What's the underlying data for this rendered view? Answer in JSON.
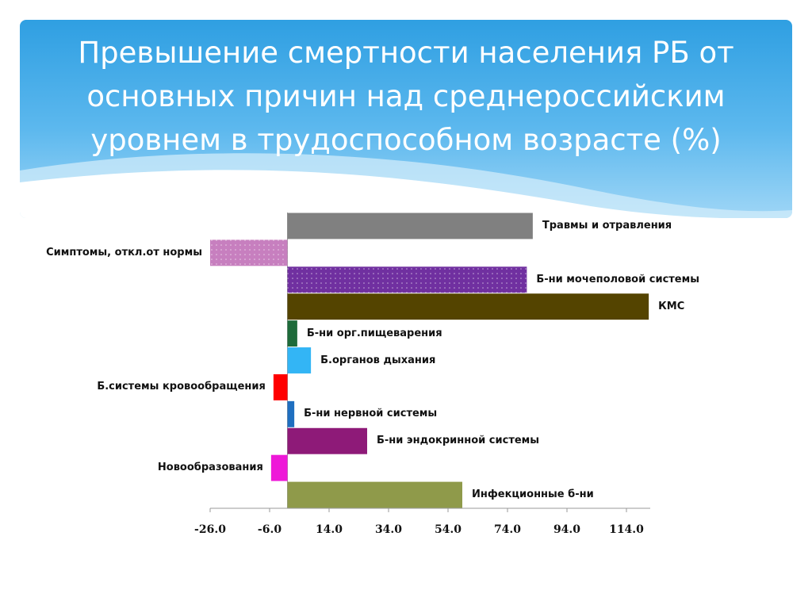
{
  "chart_data": {
    "type": "hbar",
    "title": "Превышение смертности населения РБ от основных причин над среднероссийским уровнем в трудоспособном возрасте (%)",
    "categories": [
      "Травмы и отравления",
      "Симптомы, откл.от нормы",
      "Б-ни мочеполовой системы",
      "КМС",
      "Б-ни орг.пищеварения",
      "Б.органов дыхания",
      "Б.системы кровообращения",
      "Б-ни нервной системы",
      "Б-ни эндокринной системы",
      "Новообразования",
      "Инфекционные б-ни"
    ],
    "values": [
      82.5,
      -26,
      80.5,
      121.5,
      3.3,
      7.9,
      -4.7,
      2.3,
      26.8,
      -5.5,
      58.8
    ],
    "colors": [
      "#808080",
      "#c77fbf",
      "#7030a0",
      "#544400",
      "#1e6b3a",
      "#33b5f5",
      "#ff0000",
      "#1f6fc0",
      "#8e1a78",
      "#ee18d8",
      "#8f9a4a"
    ],
    "xlim": [
      -26,
      122
    ],
    "xticks": [
      {
        "value": -26,
        "label": "-26.0"
      },
      {
        "value": -6,
        "label": "-6.0"
      },
      {
        "value": 14,
        "label": "14.0"
      },
      {
        "value": 34,
        "label": "34.0"
      },
      {
        "value": 54,
        "label": "54.0"
      },
      {
        "value": 74,
        "label": "74.0"
      },
      {
        "value": 94,
        "label": "94.0"
      },
      {
        "value": 114,
        "label": "114.0"
      }
    ]
  }
}
